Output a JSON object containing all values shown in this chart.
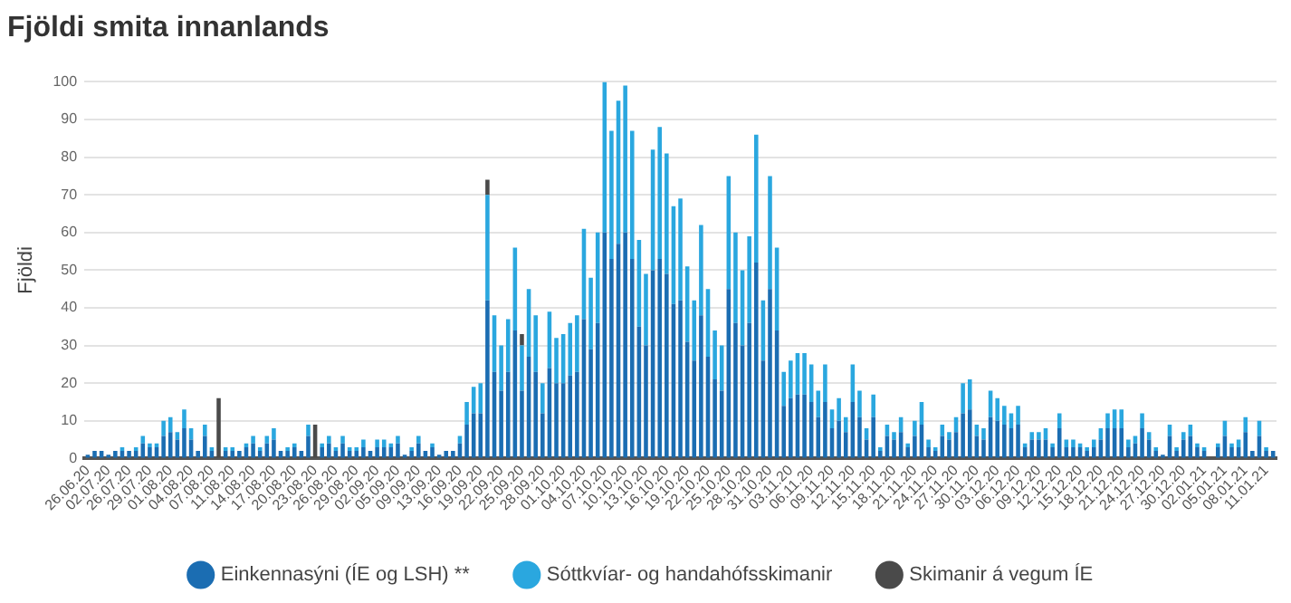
{
  "chart_data": {
    "type": "bar",
    "title": "Fjöldi smita innanlands",
    "ylabel": "Fjöldi",
    "stacked": true,
    "grid": "y",
    "legend": "bottom",
    "ylim": [
      0,
      100
    ],
    "yticks": [
      0,
      10,
      20,
      30,
      40,
      50,
      60,
      70,
      80,
      90,
      100
    ],
    "categories": [
      "26.06.20",
      null,
      null,
      "02.07.20",
      null,
      null,
      "26.07.20",
      null,
      null,
      "29.07.20",
      null,
      null,
      "01.08.20",
      null,
      null,
      "04.08.20",
      null,
      null,
      "07.08.20",
      null,
      null,
      "11.08.20",
      null,
      null,
      "14.08.20",
      null,
      null,
      "17.08.20",
      null,
      null,
      "20.08.20",
      null,
      null,
      "23.08.20",
      null,
      null,
      "26.08.20",
      null,
      null,
      "29.08.20",
      null,
      null,
      "02.09.20",
      null,
      null,
      "05.09.20",
      null,
      null,
      "09.09.20",
      null,
      null,
      "13.09.20",
      null,
      null,
      "16.09.20",
      null,
      null,
      "19.09.20",
      null,
      null,
      "22.09.20",
      null,
      null,
      "25.09.20",
      null,
      null,
      "28.09.20",
      null,
      null,
      "01.10.20",
      null,
      null,
      "04.10.20",
      null,
      null,
      "07.10.20",
      null,
      null,
      "10.10.20",
      null,
      null,
      "13.10.20",
      null,
      null,
      "16.10.20",
      null,
      null,
      "19.10.20",
      null,
      null,
      "22.10.20",
      null,
      null,
      "25.10.20",
      null,
      null,
      "28.10.20",
      null,
      null,
      "31.10.20",
      null,
      null,
      "03.11.20",
      null,
      null,
      "06.11.20",
      null,
      null,
      "09.11.20",
      null,
      null,
      "12.11.20",
      null,
      null,
      "15.11.20",
      null,
      null,
      "18.11.20",
      null,
      null,
      "21.11.20",
      null,
      null,
      "24.11.20",
      null,
      null,
      "27.11.20",
      null,
      null,
      "30.11.20",
      null,
      null,
      "03.12.20",
      null,
      null,
      "06.12.20",
      null,
      null,
      "09.12.20",
      null,
      null,
      "12.12.20",
      null,
      null,
      "15.12.20",
      null,
      null,
      "18.12.20",
      null,
      null,
      "21.12.20",
      null,
      null,
      "24.12.20",
      null,
      null,
      "27.12.20",
      null,
      null,
      "30.12.20",
      null,
      null,
      "02.01.21",
      null,
      null,
      "05.01.21",
      null,
      null,
      "08.01.21",
      null,
      null,
      "11.01.21",
      null
    ],
    "series": [
      {
        "name": "Einkennasýni (ÍE og LSH) **",
        "color": "#1b6db2",
        "values": [
          1,
          2,
          2,
          1,
          2,
          2,
          2,
          2,
          4,
          3,
          3,
          6,
          7,
          5,
          8,
          5,
          2,
          6,
          2,
          0,
          2,
          2,
          2,
          3,
          4,
          2,
          4,
          5,
          2,
          2,
          3,
          2,
          6,
          0,
          3,
          4,
          2,
          4,
          2,
          2,
          3,
          2,
          3,
          3,
          3,
          4,
          1,
          2,
          4,
          2,
          3,
          1,
          2,
          2,
          4,
          9,
          12,
          12,
          42,
          23,
          18,
          23,
          34,
          18,
          27,
          23,
          12,
          24,
          20,
          20,
          22,
          23,
          37,
          29,
          36,
          60,
          53,
          57,
          60,
          53,
          35,
          30,
          50,
          53,
          49,
          41,
          42,
          31,
          26,
          38,
          27,
          21,
          18,
          45,
          36,
          30,
          36,
          52,
          26,
          45,
          34,
          14,
          16,
          17,
          17,
          15,
          11,
          15,
          8,
          10,
          7,
          15,
          11,
          5,
          11,
          2,
          6,
          5,
          7,
          3,
          6,
          9,
          3,
          2,
          6,
          5,
          7,
          12,
          13,
          6,
          5,
          11,
          10,
          9,
          8,
          9,
          3,
          5,
          5,
          5,
          3,
          8,
          3,
          3,
          3,
          2,
          3,
          5,
          8,
          8,
          8,
          3,
          4,
          8,
          5,
          2,
          1,
          6,
          2,
          5,
          6,
          3,
          2,
          0,
          3,
          6,
          3,
          3,
          7,
          2,
          6,
          2,
          2
        ]
      },
      {
        "name": "Sóttkvíar- og handahófsskimanir",
        "color": "#2aa7df",
        "values": [
          0,
          0,
          0,
          0,
          0,
          1,
          0,
          1,
          2,
          1,
          1,
          4,
          4,
          2,
          5,
          3,
          0,
          3,
          1,
          0,
          1,
          1,
          0,
          1,
          2,
          1,
          2,
          3,
          0,
          1,
          1,
          0,
          3,
          0,
          1,
          2,
          1,
          2,
          1,
          1,
          2,
          0,
          2,
          2,
          1,
          2,
          0,
          1,
          2,
          0,
          1,
          0,
          0,
          0,
          2,
          6,
          7,
          8,
          28,
          15,
          12,
          14,
          22,
          12,
          18,
          15,
          8,
          15,
          12,
          13,
          14,
          15,
          24,
          19,
          24,
          40,
          34,
          38,
          39,
          34,
          23,
          19,
          32,
          35,
          32,
          26,
          27,
          20,
          16,
          24,
          18,
          13,
          12,
          30,
          24,
          20,
          23,
          34,
          16,
          30,
          22,
          9,
          10,
          11,
          11,
          10,
          7,
          10,
          5,
          6,
          4,
          10,
          7,
          3,
          6,
          1,
          3,
          2,
          4,
          1,
          4,
          6,
          2,
          1,
          3,
          2,
          4,
          8,
          8,
          3,
          3,
          7,
          6,
          5,
          4,
          5,
          1,
          2,
          2,
          3,
          1,
          4,
          2,
          2,
          1,
          1,
          2,
          3,
          4,
          5,
          5,
          2,
          2,
          4,
          2,
          1,
          0,
          3,
          1,
          2,
          3,
          1,
          1,
          0,
          1,
          4,
          1,
          2,
          4,
          0,
          4,
          1,
          0
        ]
      },
      {
        "name": "Skimanir á vegum ÍE",
        "color": "#4a4a4a",
        "values": [
          null,
          null,
          null,
          null,
          null,
          null,
          null,
          null,
          null,
          null,
          null,
          null,
          null,
          null,
          null,
          null,
          null,
          null,
          null,
          16,
          null,
          null,
          null,
          null,
          null,
          null,
          null,
          null,
          null,
          null,
          null,
          null,
          null,
          9,
          null,
          null,
          null,
          null,
          null,
          null,
          null,
          null,
          null,
          null,
          null,
          null,
          null,
          null,
          null,
          null,
          null,
          null,
          null,
          null,
          null,
          null,
          null,
          null,
          4,
          null,
          null,
          null,
          null,
          3,
          null,
          null,
          null,
          null,
          null,
          null,
          null,
          null,
          null,
          null,
          null,
          null,
          null,
          null,
          null,
          null,
          null,
          null,
          null,
          null,
          null,
          null,
          null,
          null,
          null,
          null,
          null,
          null,
          null,
          null,
          null,
          null,
          null,
          null,
          null,
          null,
          null,
          null,
          null,
          null,
          null,
          null,
          null,
          null,
          null,
          null,
          null,
          null,
          null,
          null,
          null,
          null,
          null,
          null,
          null,
          null,
          null,
          null,
          null,
          null,
          null,
          null,
          null,
          null,
          null,
          null,
          null,
          null,
          null,
          null,
          null,
          null,
          null,
          null,
          null,
          null,
          null,
          null,
          null,
          null,
          null,
          null,
          null,
          null,
          null,
          null,
          null,
          null,
          null,
          null,
          null,
          null,
          null,
          null,
          null,
          null,
          null,
          null,
          null,
          null,
          null,
          null,
          null,
          null,
          null,
          null,
          null,
          null,
          null
        ]
      }
    ]
  }
}
